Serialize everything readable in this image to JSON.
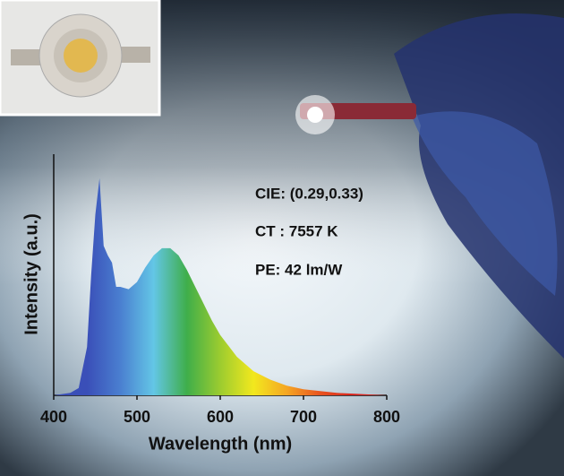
{
  "chart_data": {
    "type": "area",
    "annotations": [
      "CIE: (0.29,0.33)",
      "CT : 7557 K",
      "PE: 42 lm/W"
    ],
    "xlabel": "Wavelength (nm)",
    "ylabel": "Intensity (a.u.)",
    "x": [
      400,
      420,
      430,
      440,
      445,
      450,
      455,
      460,
      465,
      470,
      475,
      480,
      490,
      500,
      510,
      520,
      530,
      540,
      550,
      560,
      570,
      580,
      590,
      600,
      620,
      640,
      660,
      680,
      700,
      740,
      800
    ],
    "values": [
      0,
      0.01,
      0.03,
      0.2,
      0.5,
      0.75,
      0.9,
      0.62,
      0.58,
      0.55,
      0.45,
      0.45,
      0.44,
      0.47,
      0.53,
      0.58,
      0.61,
      0.61,
      0.58,
      0.52,
      0.45,
      0.38,
      0.31,
      0.25,
      0.16,
      0.1,
      0.065,
      0.04,
      0.025,
      0.01,
      0
    ],
    "gradient": [
      "#3a4fb8",
      "#3a4fb8",
      "#4a7fd0",
      "#63c6e6",
      "#3fae4a",
      "#9ccc2f",
      "#f2e81e",
      "#f5a623",
      "#e8531f",
      "#d8221c",
      "#d8221c"
    ],
    "xlim": [
      400,
      800
    ],
    "xticks": [
      400,
      500,
      600,
      700,
      800
    ],
    "ylim": [
      0,
      1
    ]
  }
}
